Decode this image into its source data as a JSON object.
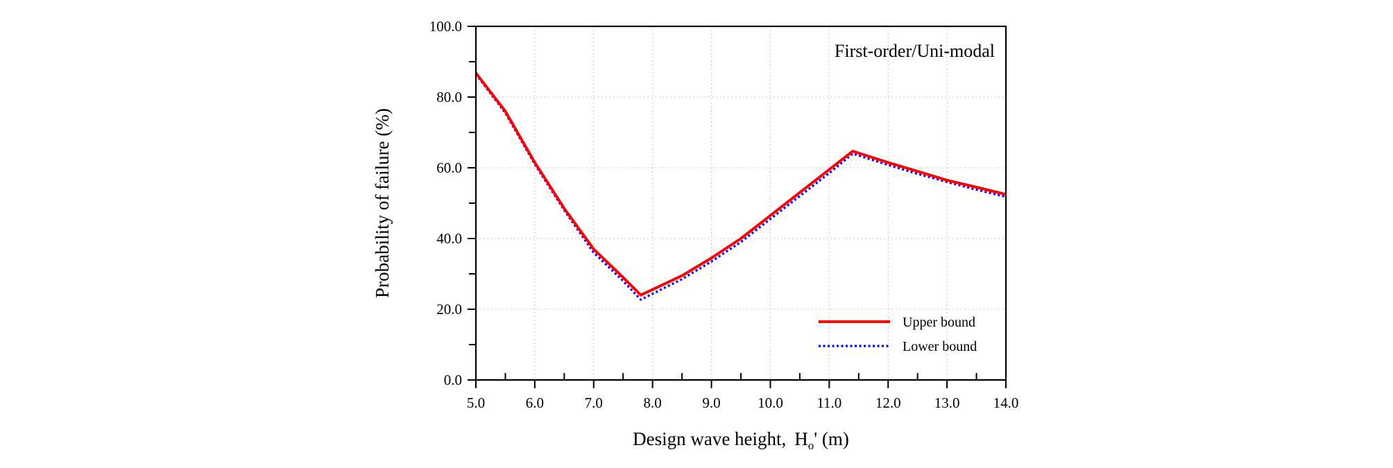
{
  "chart_data": {
    "type": "line",
    "annotation": "First-order/Uni-modal",
    "xlabel": {
      "prefix": "Design wave height,",
      "symbol": "H",
      "subscript": "o",
      "suffix": "' (m)"
    },
    "ylabel": "Probability of failure (%)",
    "xlim": [
      5.0,
      14.0
    ],
    "ylim": [
      0.0,
      100.0
    ],
    "xticks": [
      5.0,
      6.0,
      7.0,
      8.0,
      9.0,
      10.0,
      11.0,
      12.0,
      13.0,
      14.0
    ],
    "xtick_labels": [
      "5.0",
      "6.0",
      "7.0",
      "8.0",
      "9.0",
      "10.0",
      "11.0",
      "12.0",
      "13.0",
      "14.0"
    ],
    "yticks": [
      0.0,
      20.0,
      40.0,
      60.0,
      80.0,
      100.0
    ],
    "ytick_labels": [
      "0.0",
      "20.0",
      "40.0",
      "60.0",
      "80.0",
      "100.0"
    ],
    "grid": true,
    "legend_position": "bottom-right",
    "series": [
      {
        "name": "Upper bound",
        "color": "#ff0000",
        "style": "solid",
        "x": [
          5.0,
          5.5,
          6.0,
          6.5,
          7.0,
          7.5,
          7.8,
          8.5,
          9.0,
          9.5,
          10.0,
          10.5,
          11.0,
          11.4,
          12.0,
          12.5,
          13.0,
          13.5,
          14.0
        ],
        "y": [
          86.8,
          76.0,
          61.5,
          48.5,
          37.0,
          29.0,
          24.0,
          29.5,
          34.5,
          40.0,
          46.5,
          53.0,
          59.5,
          64.7,
          61.5,
          59.0,
          56.5,
          54.5,
          52.5
        ]
      },
      {
        "name": "Lower bound",
        "color": "#0000ff",
        "style": "dotted",
        "x": [
          5.0,
          5.5,
          6.0,
          6.5,
          7.0,
          7.5,
          7.8,
          8.5,
          9.0,
          9.5,
          10.0,
          10.5,
          11.0,
          11.4,
          12.0,
          12.5,
          13.0,
          13.5,
          14.0
        ],
        "y": [
          86.5,
          75.5,
          61.0,
          48.0,
          36.0,
          28.0,
          22.7,
          28.5,
          33.5,
          39.0,
          45.5,
          52.0,
          58.5,
          64.0,
          60.8,
          58.3,
          56.0,
          53.8,
          51.8
        ]
      }
    ]
  }
}
